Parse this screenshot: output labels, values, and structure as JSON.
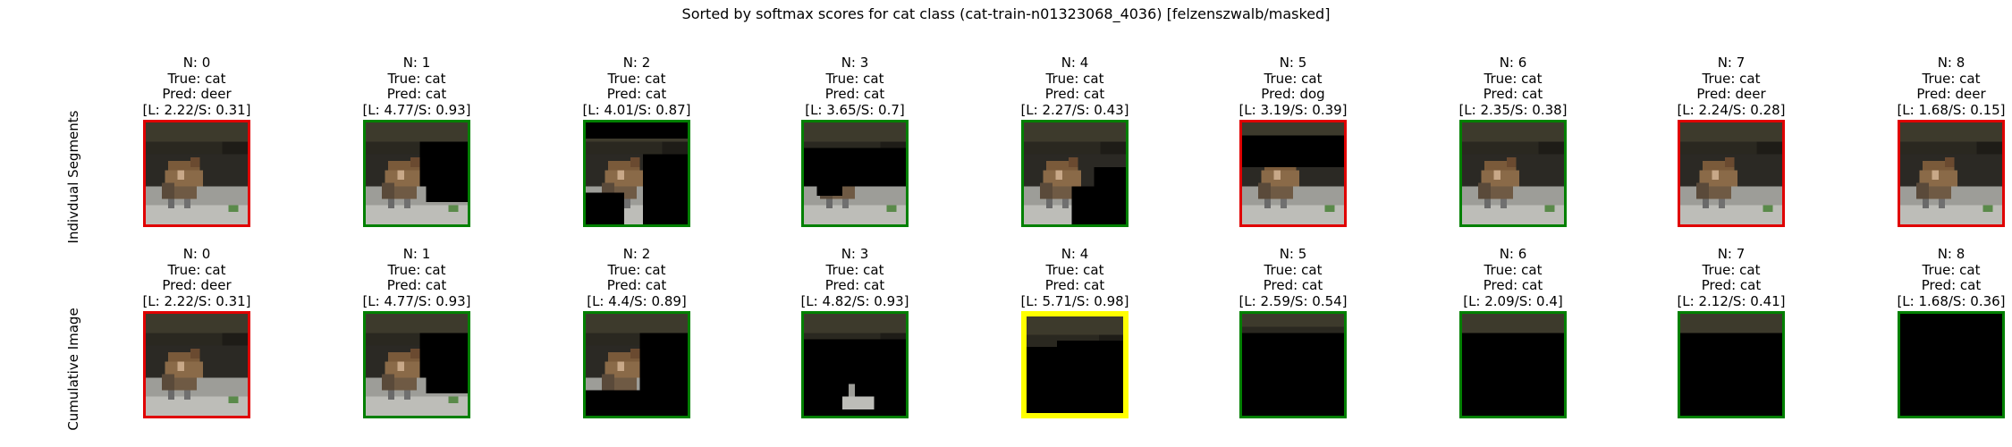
{
  "title": "Sorted by softmax scores for cat class (cat-train-n01323068_4036) [felzenszwalb/masked]",
  "row_labels": [
    "Indivdual Segments",
    "Cumulative Image"
  ],
  "colors": {
    "correct": "#008000",
    "incorrect": "#e00000",
    "highlight": "#ffff00"
  },
  "chart_data": {
    "type": "image-grid",
    "title": "Sorted by softmax scores for cat class (cat-train-n01323068_4036) [felzenszwalb/masked]",
    "rows": [
      {
        "label": "Indivdual Segments",
        "cells": [
          {
            "n": "N: 0",
            "true": "True: cat",
            "pred": "Pred: deer",
            "scores": "[L: 2.22/S: 0.31]",
            "border": "incorrect",
            "mask": "full"
          },
          {
            "n": "N: 1",
            "true": "True: cat",
            "pred": "Pred: cat",
            "scores": "[L: 4.77/S: 0.93]",
            "border": "correct",
            "mask": "seg1"
          },
          {
            "n": "N: 2",
            "true": "True: cat",
            "pred": "Pred: cat",
            "scores": "[L: 4.01/S: 0.87]",
            "border": "correct",
            "mask": "seg2"
          },
          {
            "n": "N: 3",
            "true": "True: cat",
            "pred": "Pred: cat",
            "scores": "[L: 3.65/S: 0.7]",
            "border": "correct",
            "mask": "seg3"
          },
          {
            "n": "N: 4",
            "true": "True: cat",
            "pred": "Pred: cat",
            "scores": "[L: 2.27/S: 0.43]",
            "border": "correct",
            "mask": "seg4"
          },
          {
            "n": "N: 5",
            "true": "True: cat",
            "pred": "Pred: dog",
            "scores": "[L: 3.19/S: 0.39]",
            "border": "incorrect",
            "mask": "seg5"
          },
          {
            "n": "N: 6",
            "true": "True: cat",
            "pred": "Pred: cat",
            "scores": "[L: 2.35/S: 0.38]",
            "border": "correct",
            "mask": "full"
          },
          {
            "n": "N: 7",
            "true": "True: cat",
            "pred": "Pred: deer",
            "scores": "[L: 2.24/S: 0.28]",
            "border": "incorrect",
            "mask": "full"
          },
          {
            "n": "N: 8",
            "true": "True: cat",
            "pred": "Pred: deer",
            "scores": "[L: 1.68/S: 0.15]",
            "border": "incorrect",
            "mask": "full"
          }
        ]
      },
      {
        "label": "Cumulative Image",
        "cells": [
          {
            "n": "N: 0",
            "true": "True: cat",
            "pred": "Pred: deer",
            "scores": "[L: 2.22/S: 0.31]",
            "border": "incorrect",
            "mask": "full"
          },
          {
            "n": "N: 1",
            "true": "True: cat",
            "pred": "Pred: cat",
            "scores": "[L: 4.77/S: 0.93]",
            "border": "correct",
            "mask": "seg1"
          },
          {
            "n": "N: 2",
            "true": "True: cat",
            "pred": "Pred: cat",
            "scores": "[L: 4.4/S: 0.89]",
            "border": "correct",
            "mask": "cum2"
          },
          {
            "n": "N: 3",
            "true": "True: cat",
            "pred": "Pred: cat",
            "scores": "[L: 4.82/S: 0.93]",
            "border": "correct",
            "mask": "cum3"
          },
          {
            "n": "N: 4",
            "true": "True: cat",
            "pred": "Pred: cat",
            "scores": "[L: 5.71/S: 0.98]",
            "border": "highlight",
            "mask": "cum4"
          },
          {
            "n": "N: 5",
            "true": "True: cat",
            "pred": "Pred: cat",
            "scores": "[L: 2.59/S: 0.54]",
            "border": "correct",
            "mask": "cum5"
          },
          {
            "n": "N: 6",
            "true": "True: cat",
            "pred": "Pred: cat",
            "scores": "[L: 2.09/S: 0.4]",
            "border": "correct",
            "mask": "cum6"
          },
          {
            "n": "N: 7",
            "true": "True: cat",
            "pred": "Pred: cat",
            "scores": "[L: 2.12/S: 0.41]",
            "border": "correct",
            "mask": "cum7"
          },
          {
            "n": "N: 8",
            "true": "True: cat",
            "pred": "Pred: cat",
            "scores": "[L: 1.68/S: 0.36]",
            "border": "correct",
            "mask": "black"
          }
        ]
      }
    ]
  }
}
